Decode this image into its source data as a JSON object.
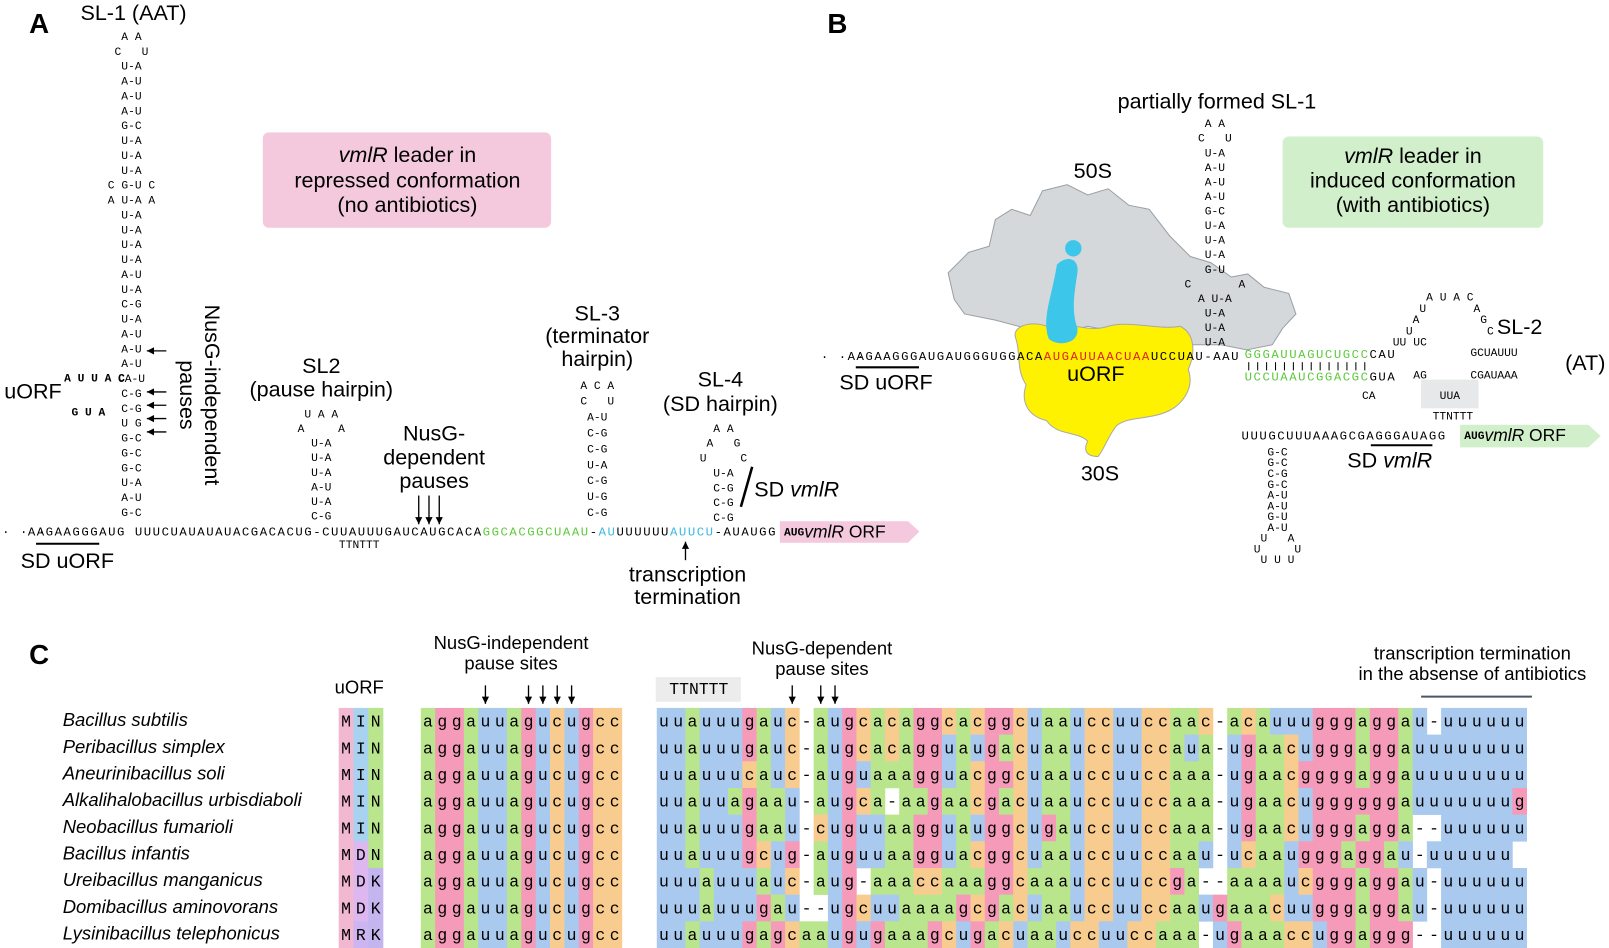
{
  "panel_a": {
    "letter": "A",
    "sl1_title": "SL-1 (AAT)",
    "sl1_stem": [
      "A A",
      "C   U",
      "U-A",
      "A-U",
      "A-U",
      "A-U",
      "G-C",
      "U-A",
      "U-A",
      "U-A",
      "C G-U C",
      "A U-A A",
      "U-A",
      "U-A",
      "U-A",
      "U-A",
      "A-U",
      "U-A",
      "C-G",
      "U-A",
      "A-U",
      "A-U",
      "A-U",
      "CA-U",
      "C-G",
      "C-G",
      "U G",
      "G-C",
      "G-C",
      "G-C",
      "U-A",
      "A-U",
      "G-C"
    ],
    "uorf_label": "uORF",
    "uorf_loop": [
      "A U U A C",
      "G U A"
    ],
    "pause_label": [
      "NusG-independent",
      "pauses"
    ],
    "box": {
      "italic": "vmlR",
      "line1_rest": " leader in",
      "line2": "repressed conformation",
      "line3": "(no antibiotics)"
    },
    "sl2_title": "SL2",
    "sl2_subtitle": "(pause hairpin)",
    "sl2_stem": [
      "U A A",
      "A     A",
      "U-A",
      "U-A",
      "U-A",
      "A-U",
      "U-A",
      "C-G"
    ],
    "dep_label": [
      "NusG-",
      "dependent",
      "pauses"
    ],
    "sl3_title": [
      "SL-3",
      "(terminator",
      "hairpin)"
    ],
    "sl3_stem": [
      "A C A",
      "C   U",
      "A-U",
      "C-G",
      "C-G",
      "U-A",
      "C-G",
      "U-G",
      "C-G"
    ],
    "sl4_title": [
      "SL-4",
      "(SD hairpin)"
    ],
    "sl4_stem": [
      "A A",
      "A   G",
      "U     C",
      "U-A",
      "C-G",
      "C-G",
      "C-G"
    ],
    "sd_vmlr": {
      "prefix": "SD ",
      "italic": "vmlR"
    },
    "ellipsis": "· · ·",
    "sequence": [
      {
        "text": "AAGAAGGGAUG UUUCUAUAUAUACGACACUG-CUUAUUUGAUCAUGCACA",
        "color": "#000000"
      },
      {
        "text": "GGCACGGCUAAU",
        "color": "#5cc93a"
      },
      {
        "text": "-",
        "color": "#000000"
      },
      {
        "text": "AU",
        "color": "#3ab8e0"
      },
      {
        "text": "UUUUUU",
        "color": "#000000"
      },
      {
        "text": "AUUCU",
        "color": "#3ab8e0"
      },
      {
        "text": "-AUAUGG",
        "color": "#000000"
      }
    ],
    "orf": {
      "start": "AUG",
      "italic": "vmlR",
      "rest": " ORF"
    },
    "ttnttt": "TTNTTT",
    "sd_uorf": "SD uORF",
    "termination": [
      "transcription",
      "termination"
    ]
  },
  "panel_b": {
    "letter": "B",
    "sl1_title": "partially formed SL-1",
    "sl1_stem": [
      "A A",
      "C   U",
      "U-A",
      "A-U",
      "A-U",
      "A-U",
      "G-C",
      "U-A",
      "U-A",
      "U-A",
      "G-U",
      "C       A",
      "A U-A",
      "U-A",
      "U-A",
      "U-A"
    ],
    "label_50s": "50S",
    "label_30s": "30S",
    "uorf_label": "uORF",
    "box": {
      "italic": "vmlR",
      "line1_rest": " leader in",
      "line2": "induced conformation",
      "line3": "(with antibiotics)"
    },
    "ellipsis": "· · ·",
    "sequence": [
      {
        "text": "AAGAAGGGAUGAUGGGUGGACA",
        "color": "#000000"
      },
      {
        "text": "AUGAUUAACUAA",
        "color": "#e0201b"
      },
      {
        "text": "UCCUAU-AAU",
        "color": "#000000"
      }
    ],
    "sd_uorf": "SD uORF",
    "sl2_top": [
      {
        "text": "GGGAUUAGUCUGCC",
        "color": "#5cc93a"
      },
      {
        "text": "CAU",
        "color": "#000000"
      }
    ],
    "sl2_bottom": [
      {
        "text": "UCCUAAUCGGACGC",
        "color": "#5cc93a"
      },
      {
        "text": "GUA",
        "color": "#000000"
      }
    ],
    "sl2_inner": [
      "CA",
      "UU",
      "UC",
      "AG"
    ],
    "sl2_loop": [
      "A U A C",
      "U       A",
      "A         G",
      "U           C"
    ],
    "sl2_stem_top": "GCUAUUU",
    "sl2_stem_bottom": "CGAUAAA",
    "sl2_bulge": "UUA",
    "sl2_title": "SL-2",
    "at_label": "(AT)",
    "ttnttt": "TTNTTT",
    "lower_sequence": "UUUGCUUUAAAGCGAGGGAUAGG",
    "sd_hairpin": [
      "G-C",
      "G-C",
      "C-G",
      "G-C",
      "A-U",
      "A-U",
      "G-U",
      "A-U",
      "U   A",
      "U     U",
      "U U U"
    ],
    "sd_vmlr": {
      "prefix": "SD ",
      "italic": "vmlR"
    },
    "orf": {
      "start": "AUG",
      "italic": "vmlR",
      "rest": " ORF"
    }
  },
  "panel_c": {
    "letter": "C",
    "uorf_header": "uORF",
    "indep_header": [
      "NusG-independent",
      "pause sites"
    ],
    "dep_header": [
      "NusG-dependent",
      "pause sites"
    ],
    "term_header": [
      "transcription termination",
      "in the absense of antibiotics"
    ],
    "ttnttt": "TTNTTT",
    "rows": [
      {
        "species": "Bacillus subtilis",
        "uorf": "MIN",
        "seq1": "aggauuagucugcc",
        "seq2": "uuauuugauc-augcacaggcacggcuaauccuuccaac-acauuugggaggau-uuuuuu"
      },
      {
        "species": "Peribacillus simplex",
        "uorf": "MIN",
        "seq1": "aggauuagucugcc",
        "seq2": "uuauuugauc-augcacagguaugacuaauccuuccaua-ugaacugggaggauuuuuuuu"
      },
      {
        "species": "Aneurinibacillus soli",
        "uorf": "MIN",
        "seq1": "aggauuagucugcc",
        "seq2": "uuauuucauc-auguaaagguacggcuaauccuuccaaa-ugaacggggaggauuuuuuuu"
      },
      {
        "species": "Alkalihalobacillus urbisdiaboli",
        "uorf": "MIN",
        "seq1": "aggauuagucugcc",
        "seq2": "uuauuagaau-augca-aagaacgacuaauccuuccaaa-ugaacuggggggauuuuuuug"
      },
      {
        "species": "Neobacillus fumarioli",
        "uorf": "MIN",
        "seq1": "aggauuagucugcc",
        "seq2": "uuauuugaau-cuguuaagguauggcugauccuuccaaa-ugaacugggagga--uuuuuu"
      },
      {
        "species": "Bacillus infantis",
        "uorf": "MDN",
        "seq1": "aggauuagucugcc",
        "seq2": "uuauuugcug-auguuaagguacggcuaauccuuccaau-ucaaugggaggau-uuuuuu"
      },
      {
        "species": "Ureibacillus manganicus",
        "uorf": "MDK",
        "seq1": "aggauuagucugcc",
        "seq2": "uuuauuuauc-aug-aaaccaaaggcaaauccuuccga--aaaaucgggaggau-uuuuuu"
      },
      {
        "species": "Domibacillus aminovorans",
        "uorf": "MDK",
        "seq1": "aggauuagucugcc",
        "seq2": "uuuauuugau--ugcuuaaaagcgacuaauccuuccaaugaaacuugggaggau-uuuuuu"
      },
      {
        "species": "Lysinibacillus telephonicus",
        "uorf": "MRK",
        "seq1": "aggauuagucugcc",
        "seq2": "uuauuugagcaaugugaaagcugacuaauccuuccaaa-ugaaaccuggaggg--uuuuuu"
      }
    ]
  }
}
